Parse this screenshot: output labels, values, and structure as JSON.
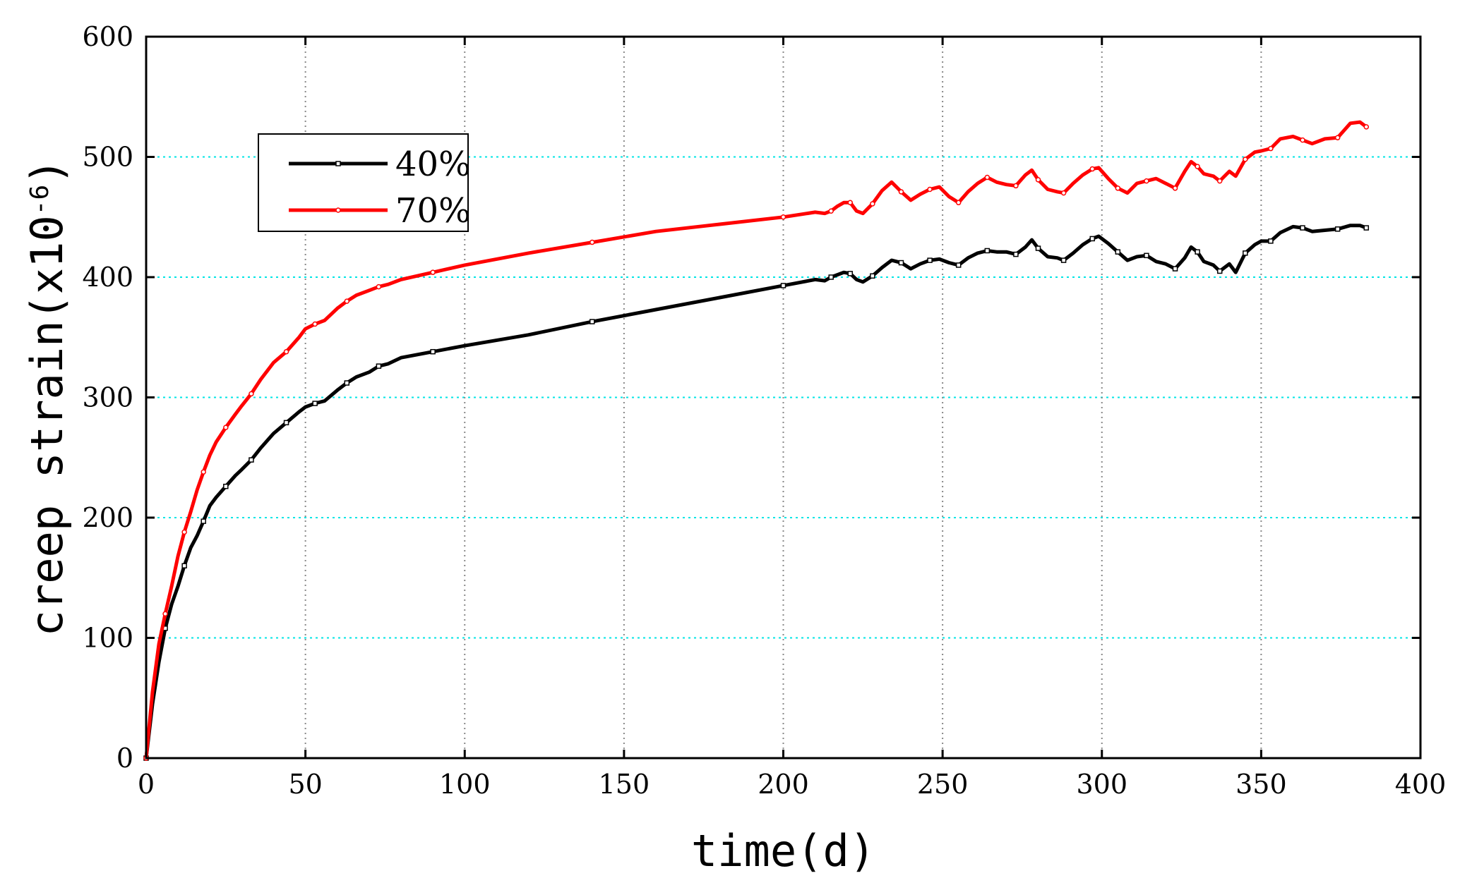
{
  "chart_data": {
    "type": "line",
    "title": "",
    "xlabel": "time(d)",
    "ylabel": "creep strain(x10",
    "ylabel_exponent": "-6",
    "ylabel_close": ")",
    "xlim": [
      0,
      400
    ],
    "ylim": [
      0,
      600
    ],
    "xticks": [
      0,
      50,
      100,
      150,
      200,
      250,
      300,
      350,
      400
    ],
    "yticks": [
      0,
      100,
      200,
      300,
      400,
      500,
      600
    ],
    "grid": true,
    "grid_color": "#00e5e5",
    "xgrid_color": "#888888",
    "legend_position": "upper-left",
    "series": [
      {
        "name": "40%",
        "color": "#000000",
        "marker": "square",
        "points": [
          [
            0,
            0
          ],
          [
            2,
            45
          ],
          [
            4,
            80
          ],
          [
            6,
            108
          ],
          [
            8,
            128
          ],
          [
            10,
            143
          ],
          [
            12,
            160
          ],
          [
            14,
            175
          ],
          [
            16,
            185
          ],
          [
            18,
            197
          ],
          [
            20,
            210
          ],
          [
            22,
            217
          ],
          [
            25,
            226
          ],
          [
            28,
            235
          ],
          [
            30,
            240
          ],
          [
            33,
            248
          ],
          [
            36,
            258
          ],
          [
            40,
            270
          ],
          [
            44,
            279
          ],
          [
            48,
            288
          ],
          [
            50,
            292
          ],
          [
            53,
            295
          ],
          [
            56,
            297
          ],
          [
            60,
            306
          ],
          [
            63,
            312
          ],
          [
            66,
            317
          ],
          [
            70,
            321
          ],
          [
            73,
            326
          ],
          [
            76,
            328
          ],
          [
            80,
            333
          ],
          [
            90,
            338
          ],
          [
            100,
            343
          ],
          [
            120,
            352
          ],
          [
            140,
            363
          ],
          [
            160,
            373
          ],
          [
            180,
            383
          ],
          [
            200,
            393
          ],
          [
            210,
            398
          ],
          [
            213,
            397
          ],
          [
            215,
            400
          ],
          [
            217,
            402
          ],
          [
            219,
            404
          ],
          [
            221,
            403
          ],
          [
            223,
            398
          ],
          [
            225,
            396
          ],
          [
            228,
            401
          ],
          [
            231,
            408
          ],
          [
            234,
            414
          ],
          [
            237,
            412
          ],
          [
            240,
            407
          ],
          [
            243,
            411
          ],
          [
            246,
            414
          ],
          [
            249,
            415
          ],
          [
            252,
            412
          ],
          [
            255,
            410
          ],
          [
            258,
            416
          ],
          [
            261,
            420
          ],
          [
            264,
            422
          ],
          [
            267,
            421
          ],
          [
            270,
            421
          ],
          [
            273,
            419
          ],
          [
            276,
            425
          ],
          [
            278,
            431
          ],
          [
            280,
            424
          ],
          [
            283,
            417
          ],
          [
            286,
            416
          ],
          [
            288,
            414
          ],
          [
            291,
            420
          ],
          [
            294,
            427
          ],
          [
            297,
            432
          ],
          [
            299,
            434
          ],
          [
            302,
            428
          ],
          [
            305,
            421
          ],
          [
            308,
            414
          ],
          [
            311,
            417
          ],
          [
            314,
            418
          ],
          [
            317,
            413
          ],
          [
            320,
            411
          ],
          [
            323,
            407
          ],
          [
            326,
            416
          ],
          [
            328,
            425
          ],
          [
            330,
            421
          ],
          [
            332,
            413
          ],
          [
            335,
            410
          ],
          [
            337,
            405
          ],
          [
            340,
            411
          ],
          [
            342,
            404
          ],
          [
            345,
            420
          ],
          [
            348,
            427
          ],
          [
            350,
            430
          ],
          [
            353,
            430
          ],
          [
            356,
            437
          ],
          [
            360,
            442
          ],
          [
            363,
            441
          ],
          [
            366,
            438
          ],
          [
            370,
            439
          ],
          [
            374,
            440
          ],
          [
            378,
            443
          ],
          [
            381,
            443
          ],
          [
            383,
            441
          ]
        ]
      },
      {
        "name": "70%",
        "color": "#ff0000",
        "marker": "circle",
        "points": [
          [
            0,
            0
          ],
          [
            2,
            55
          ],
          [
            4,
            95
          ],
          [
            6,
            120
          ],
          [
            8,
            143
          ],
          [
            10,
            168
          ],
          [
            12,
            188
          ],
          [
            14,
            205
          ],
          [
            16,
            223
          ],
          [
            18,
            238
          ],
          [
            20,
            252
          ],
          [
            22,
            263
          ],
          [
            25,
            275
          ],
          [
            28,
            286
          ],
          [
            30,
            293
          ],
          [
            33,
            303
          ],
          [
            36,
            315
          ],
          [
            40,
            329
          ],
          [
            44,
            338
          ],
          [
            48,
            350
          ],
          [
            50,
            357
          ],
          [
            53,
            361
          ],
          [
            56,
            364
          ],
          [
            60,
            374
          ],
          [
            63,
            380
          ],
          [
            66,
            385
          ],
          [
            70,
            389
          ],
          [
            73,
            392
          ],
          [
            76,
            394
          ],
          [
            80,
            398
          ],
          [
            90,
            404
          ],
          [
            100,
            410
          ],
          [
            120,
            420
          ],
          [
            140,
            429
          ],
          [
            160,
            438
          ],
          [
            180,
            444
          ],
          [
            200,
            450
          ],
          [
            210,
            454
          ],
          [
            213,
            453
          ],
          [
            215,
            455
          ],
          [
            217,
            459
          ],
          [
            219,
            462
          ],
          [
            221,
            462
          ],
          [
            223,
            455
          ],
          [
            225,
            453
          ],
          [
            228,
            461
          ],
          [
            231,
            472
          ],
          [
            234,
            479
          ],
          [
            237,
            471
          ],
          [
            240,
            464
          ],
          [
            243,
            469
          ],
          [
            246,
            473
          ],
          [
            249,
            475
          ],
          [
            252,
            467
          ],
          [
            255,
            462
          ],
          [
            258,
            471
          ],
          [
            261,
            478
          ],
          [
            264,
            483
          ],
          [
            267,
            479
          ],
          [
            270,
            477
          ],
          [
            273,
            476
          ],
          [
            276,
            485
          ],
          [
            278,
            489
          ],
          [
            280,
            481
          ],
          [
            283,
            473
          ],
          [
            286,
            471
          ],
          [
            288,
            470
          ],
          [
            291,
            478
          ],
          [
            294,
            485
          ],
          [
            297,
            490
          ],
          [
            299,
            491
          ],
          [
            302,
            482
          ],
          [
            305,
            474
          ],
          [
            308,
            470
          ],
          [
            311,
            478
          ],
          [
            314,
            480
          ],
          [
            317,
            482
          ],
          [
            320,
            478
          ],
          [
            323,
            474
          ],
          [
            326,
            488
          ],
          [
            328,
            496
          ],
          [
            330,
            492
          ],
          [
            332,
            486
          ],
          [
            335,
            484
          ],
          [
            337,
            480
          ],
          [
            340,
            488
          ],
          [
            342,
            484
          ],
          [
            345,
            498
          ],
          [
            348,
            504
          ],
          [
            350,
            505
          ],
          [
            353,
            507
          ],
          [
            356,
            515
          ],
          [
            360,
            517
          ],
          [
            363,
            514
          ],
          [
            366,
            511
          ],
          [
            370,
            515
          ],
          [
            374,
            516
          ],
          [
            378,
            528
          ],
          [
            381,
            529
          ],
          [
            383,
            525
          ]
        ]
      }
    ]
  }
}
